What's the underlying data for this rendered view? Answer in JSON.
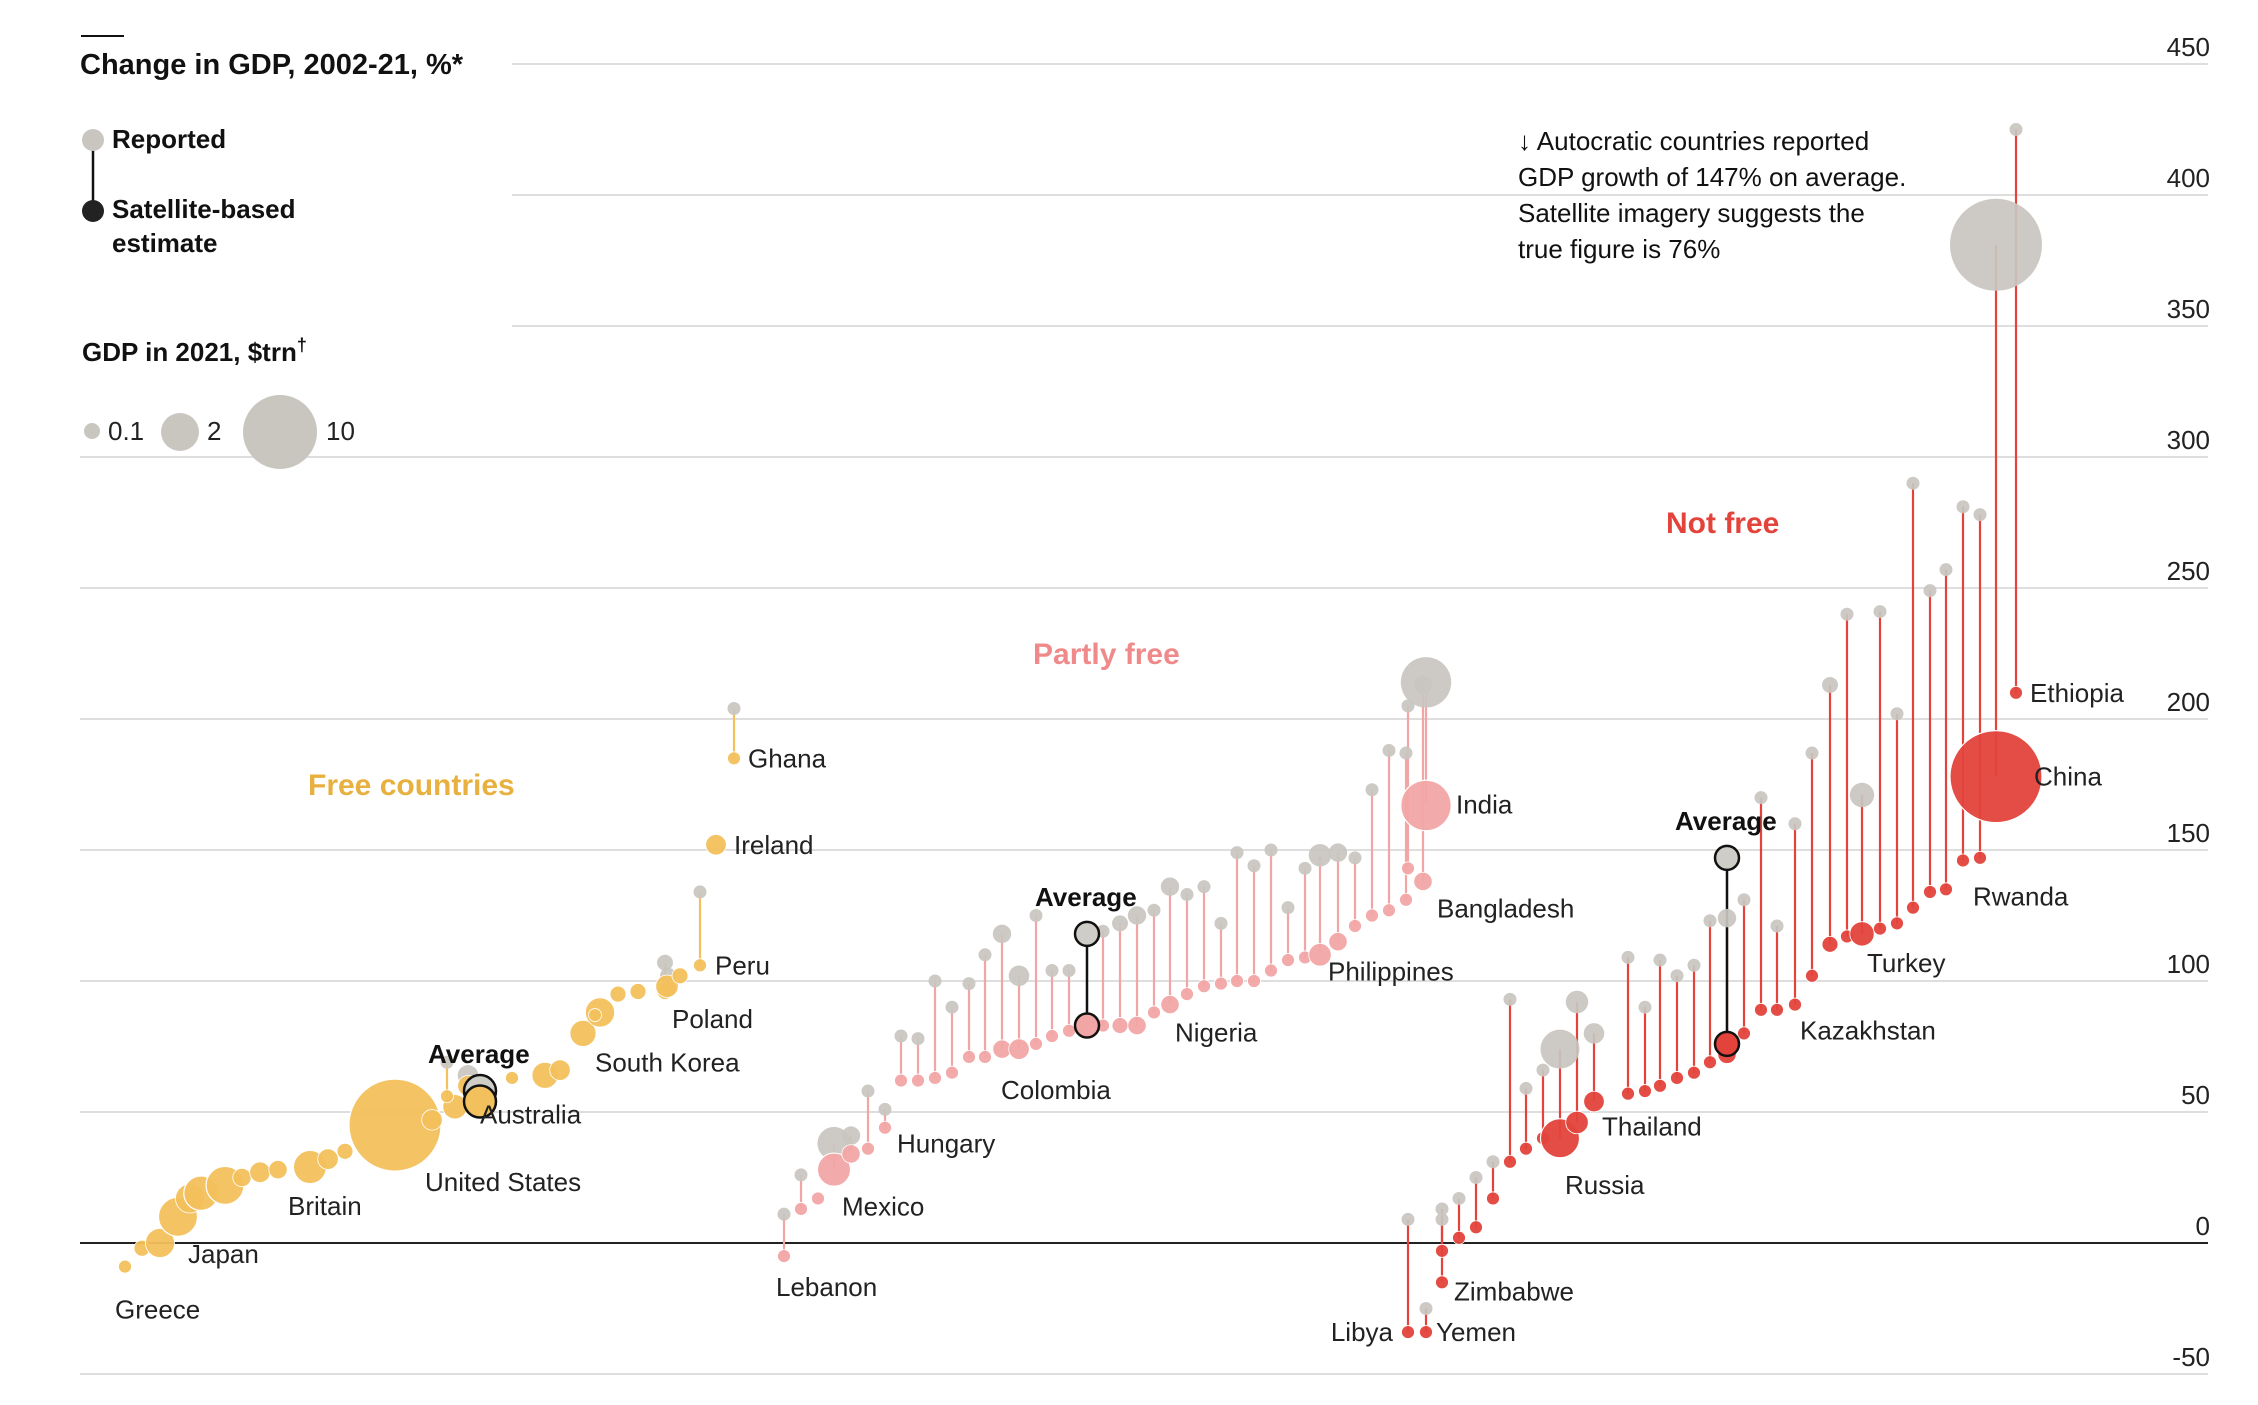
{
  "chart_data": {
    "type": "scatter",
    "title": "Change in GDP, 2002-21, %*",
    "yticks": [
      450,
      400,
      350,
      300,
      250,
      200,
      150,
      100,
      50,
      0,
      -50
    ],
    "ylim": [
      -50,
      450
    ],
    "grid": true,
    "legend": {
      "reported": "Reported",
      "satellite": "Satellite-based estimate",
      "satellite_lines": [
        "Satellite-based",
        "estimate"
      ],
      "size_title": "GDP in 2021, $trn",
      "size_title_mark": "†",
      "sizes": [
        {
          "label": "0.1",
          "value": 0.1
        },
        {
          "label": "2",
          "value": 2
        },
        {
          "label": "10",
          "value": 10
        }
      ]
    },
    "annotation": [
      "↓ Autocratic countries reported",
      "GDP growth of 147% on average.",
      "Satellite imagery suggests the",
      "true figure is 76%"
    ],
    "colors": {
      "free": "#f2c05c",
      "partly": "#f2a5a5",
      "notfree": "#e3433b",
      "reported": "#c9c6c0",
      "average_reported": "#cfcdc8",
      "partly_label": "#f08a8a",
      "free_label": "#e8b13f",
      "notfree_label": "#e3433b"
    },
    "groups": [
      {
        "id": "free",
        "label": "Free countries",
        "average": {
          "label": "Average",
          "reported": 58,
          "satellite": 54,
          "gdp": 0.8
        },
        "countries": [
          {
            "name": "Greece",
            "reported": -9,
            "satellite": -9,
            "gdp": 0.2
          },
          {
            "name": "",
            "reported": -2,
            "satellite": -2,
            "gdp": 0.3
          },
          {
            "name": "Japan",
            "reported": 0,
            "satellite": 0,
            "gdp": 1.0
          },
          {
            "name": "",
            "reported": 10,
            "satellite": 10,
            "gdp": 1.8
          },
          {
            "name": "",
            "reported": 17,
            "satellite": 17,
            "gdp": 1.0
          },
          {
            "name": "",
            "reported": 19,
            "satellite": 19,
            "gdp": 1.4
          },
          {
            "name": "",
            "reported": 22,
            "satellite": 22,
            "gdp": 1.7
          },
          {
            "name": "",
            "reported": 25,
            "satellite": 25,
            "gdp": 0.4
          },
          {
            "name": "",
            "reported": 27,
            "satellite": 27,
            "gdp": 0.5
          },
          {
            "name": "",
            "reported": 28,
            "satellite": 28,
            "gdp": 0.4
          },
          {
            "name": "Britain",
            "reported": 29,
            "satellite": 29,
            "gdp": 1.3
          },
          {
            "name": "",
            "reported": 32,
            "satellite": 32,
            "gdp": 0.5
          },
          {
            "name": "",
            "reported": 35,
            "satellite": 35,
            "gdp": 0.3
          },
          {
            "name": "United States",
            "reported": 45,
            "satellite": 45,
            "gdp": 10.0
          },
          {
            "name": "",
            "reported": 47,
            "satellite": 47,
            "gdp": 0.5
          },
          {
            "name": "",
            "reported": 52,
            "satellite": 52,
            "gdp": 0.7
          },
          {
            "name": "",
            "reported": 69,
            "satellite": 56,
            "gdp": 0.2
          },
          {
            "name": "",
            "reported": 64,
            "satellite": 60,
            "gdp": 0.5
          },
          {
            "name": "",
            "reported": 60,
            "satellite": 60,
            "gdp": 0.3
          },
          {
            "name": "",
            "reported": 63,
            "satellite": 63,
            "gdp": 0.2
          },
          {
            "name": "Australia",
            "reported": 64,
            "satellite": 64,
            "gdp": 0.8
          },
          {
            "name": "",
            "reported": 66,
            "satellite": 66,
            "gdp": 0.5
          },
          {
            "name": "South Korea",
            "reported": 80,
            "satellite": 80,
            "gdp": 0.8
          },
          {
            "name": "",
            "reported": 88,
            "satellite": 88,
            "gdp": 1.0
          },
          {
            "name": "",
            "reported": 95,
            "satellite": 95,
            "gdp": 0.3
          },
          {
            "name": "",
            "reported": 87,
            "satellite": 87,
            "gdp": 0.2
          },
          {
            "name": "",
            "reported": 107,
            "satellite": 96,
            "gdp": 0.3
          },
          {
            "name": "",
            "reported": 96,
            "satellite": 96,
            "gdp": 0.3
          },
          {
            "name": "",
            "reported": 102,
            "satellite": 97,
            "gdp": 0.3
          },
          {
            "name": "Poland",
            "reported": 98,
            "satellite": 98,
            "gdp": 0.6
          },
          {
            "name": "",
            "reported": 102,
            "satellite": 102,
            "gdp": 0.3
          },
          {
            "name": "Peru",
            "reported": 134,
            "satellite": 106,
            "gdp": 0.2
          },
          {
            "name": "Ireland",
            "reported": 152,
            "satellite": 152,
            "gdp": 0.5
          },
          {
            "name": "Ghana",
            "reported": 204,
            "satellite": 185,
            "gdp": 0.08
          }
        ]
      },
      {
        "id": "partly",
        "label": "Partly free",
        "average": {
          "label": "Average",
          "reported": 118,
          "satellite": 83,
          "gdp": 0.4
        },
        "countries": [
          {
            "name": "Lebanon",
            "reported": 11,
            "satellite": -5,
            "gdp": 0.05
          },
          {
            "name": "",
            "reported": 26,
            "satellite": 13,
            "gdp": 0.2
          },
          {
            "name": "",
            "reported": 17,
            "satellite": 17,
            "gdp": 0.1
          },
          {
            "name": "Mexico",
            "reported": 38,
            "satellite": 28,
            "gdp": 1.3
          },
          {
            "name": "",
            "reported": 41,
            "satellite": 34,
            "gdp": 0.4
          },
          {
            "name": "",
            "reported": 58,
            "satellite": 36,
            "gdp": 0.1
          },
          {
            "name": "Hungary",
            "reported": 51,
            "satellite": 44,
            "gdp": 0.2
          },
          {
            "name": "",
            "reported": 79,
            "satellite": 62,
            "gdp": 0.1
          },
          {
            "name": "",
            "reported": 78,
            "satellite": 62,
            "gdp": 0.1
          },
          {
            "name": "",
            "reported": 100,
            "satellite": 63,
            "gdp": 0.2
          },
          {
            "name": "",
            "reported": 90,
            "satellite": 65,
            "gdp": 0.2
          },
          {
            "name": "",
            "reported": 99,
            "satellite": 71,
            "gdp": 0.1
          },
          {
            "name": "",
            "reported": 110,
            "satellite": 71,
            "gdp": 0.1
          },
          {
            "name": "",
            "reported": 118,
            "satellite": 74,
            "gdp": 0.4
          },
          {
            "name": "Colombia",
            "reported": 102,
            "satellite": 74,
            "gdp": 0.5
          },
          {
            "name": "",
            "reported": 125,
            "satellite": 76,
            "gdp": 0.1
          },
          {
            "name": "",
            "reported": 104,
            "satellite": 79,
            "gdp": 0.2
          },
          {
            "name": "",
            "reported": 104,
            "satellite": 81,
            "gdp": 0.1
          },
          {
            "name": "",
            "reported": 119,
            "satellite": 83,
            "gdp": 0.1
          },
          {
            "name": "",
            "reported": 122,
            "satellite": 83,
            "gdp": 0.3
          },
          {
            "name": "",
            "reported": 125,
            "satellite": 83,
            "gdp": 0.4
          },
          {
            "name": "",
            "reported": 127,
            "satellite": 88,
            "gdp": 0.2
          },
          {
            "name": "Nigeria",
            "reported": 136,
            "satellite": 91,
            "gdp": 0.4
          },
          {
            "name": "",
            "reported": 133,
            "satellite": 95,
            "gdp": 0.2
          },
          {
            "name": "",
            "reported": 136,
            "satellite": 98,
            "gdp": 0.2
          },
          {
            "name": "",
            "reported": 122,
            "satellite": 99,
            "gdp": 0.1
          },
          {
            "name": "",
            "reported": 149,
            "satellite": 100,
            "gdp": 0.2
          },
          {
            "name": "",
            "reported": 144,
            "satellite": 100,
            "gdp": 0.1
          },
          {
            "name": "",
            "reported": 150,
            "satellite": 104,
            "gdp": 0.1
          },
          {
            "name": "",
            "reported": 128,
            "satellite": 108,
            "gdp": 0.1
          },
          {
            "name": "",
            "reported": 143,
            "satellite": 109,
            "gdp": 0.1
          },
          {
            "name": "",
            "reported": 148,
            "satellite": 110,
            "gdp": 0.6
          },
          {
            "name": "Philippines",
            "reported": 149,
            "satellite": 115,
            "gdp": 0.4
          },
          {
            "name": "",
            "reported": 147,
            "satellite": 121,
            "gdp": 0.2
          },
          {
            "name": "",
            "reported": 173,
            "satellite": 125,
            "gdp": 0.1
          },
          {
            "name": "",
            "reported": 188,
            "satellite": 127,
            "gdp": 0.1
          },
          {
            "name": "",
            "reported": 187,
            "satellite": 131,
            "gdp": 0.1
          },
          {
            "name": "Bangladesh",
            "reported": 213,
            "satellite": 138,
            "gdp": 0.4
          },
          {
            "name": "",
            "reported": 205,
            "satellite": 143,
            "gdp": 0.1
          },
          {
            "name": "India",
            "reported": 214,
            "satellite": 167,
            "gdp": 3.0
          }
        ]
      },
      {
        "id": "notfree",
        "label": "Not free",
        "average": {
          "label": "Average",
          "reported": 147,
          "satellite": 76,
          "gdp": 0.5
        },
        "countries": [
          {
            "name": "Libya",
            "reported": 9,
            "satellite": -34,
            "gdp": 0.05
          },
          {
            "name": "Yemen",
            "reported": -25,
            "satellite": -34,
            "gdp": 0.05
          },
          {
            "name": "",
            "reported": 9,
            "satellite": -3,
            "gdp": 0.1
          },
          {
            "name": "Zimbabwe",
            "reported": 13,
            "satellite": -15,
            "gdp": 0.05
          },
          {
            "name": "",
            "reported": 17,
            "satellite": 2,
            "gdp": 0.1
          },
          {
            "name": "",
            "reported": 25,
            "satellite": 6,
            "gdp": 0.1
          },
          {
            "name": "",
            "reported": 31,
            "satellite": 17,
            "gdp": 0.1
          },
          {
            "name": "",
            "reported": 93,
            "satellite": 31,
            "gdp": 0.2
          },
          {
            "name": "",
            "reported": 59,
            "satellite": 36,
            "gdp": 0.1
          },
          {
            "name": "",
            "reported": 66,
            "satellite": 40,
            "gdp": 0.2
          },
          {
            "name": "Russia",
            "reported": 74,
            "satellite": 40,
            "gdp": 1.8
          },
          {
            "name": "",
            "reported": 92,
            "satellite": 46,
            "gdp": 0.6
          },
          {
            "name": "Thailand",
            "reported": 80,
            "satellite": 54,
            "gdp": 0.5
          },
          {
            "name": "",
            "reported": 109,
            "satellite": 57,
            "gdp": 0.2
          },
          {
            "name": "",
            "reported": 90,
            "satellite": 58,
            "gdp": 0.1
          },
          {
            "name": "",
            "reported": 108,
            "satellite": 60,
            "gdp": 0.1
          },
          {
            "name": "",
            "reported": 102,
            "satellite": 63,
            "gdp": 0.1
          },
          {
            "name": "",
            "reported": 106,
            "satellite": 65,
            "gdp": 0.1
          },
          {
            "name": "",
            "reported": 123,
            "satellite": 69,
            "gdp": 0.1
          },
          {
            "name": "",
            "reported": 124,
            "satellite": 72,
            "gdp": 0.4
          },
          {
            "name": "",
            "reported": 131,
            "satellite": 80,
            "gdp": 0.1
          },
          {
            "name": "",
            "reported": 170,
            "satellite": 89,
            "gdp": 0.1
          },
          {
            "name": "",
            "reported": 121,
            "satellite": 89,
            "gdp": 0.1
          },
          {
            "name": "Kazakhstan",
            "reported": 160,
            "satellite": 91,
            "gdp": 0.2
          },
          {
            "name": "",
            "reported": 187,
            "satellite": 102,
            "gdp": 0.1
          },
          {
            "name": "",
            "reported": 213,
            "satellite": 114,
            "gdp": 0.3
          },
          {
            "name": "",
            "reported": 240,
            "satellite": 117,
            "gdp": 0.2
          },
          {
            "name": "Turkey",
            "reported": 171,
            "satellite": 118,
            "gdp": 0.7
          },
          {
            "name": "",
            "reported": 241,
            "satellite": 120,
            "gdp": 0.1
          },
          {
            "name": "",
            "reported": 202,
            "satellite": 122,
            "gdp": 0.1
          },
          {
            "name": "",
            "reported": 290,
            "satellite": 128,
            "gdp": 0.1
          },
          {
            "name": "",
            "reported": 249,
            "satellite": 134,
            "gdp": 0.1
          },
          {
            "name": "",
            "reported": 257,
            "satellite": 135,
            "gdp": 0.1
          },
          {
            "name": "Rwanda",
            "reported": 281,
            "satellite": 146,
            "gdp": 0.05
          },
          {
            "name": "",
            "reported": 278,
            "satellite": 147,
            "gdp": 0.1
          },
          {
            "name": "China",
            "reported": 381,
            "satellite": 178,
            "gdp": 10.0
          },
          {
            "name": "Ethiopia",
            "reported": 425,
            "satellite": 210,
            "gdp": 0.1
          }
        ]
      }
    ]
  }
}
